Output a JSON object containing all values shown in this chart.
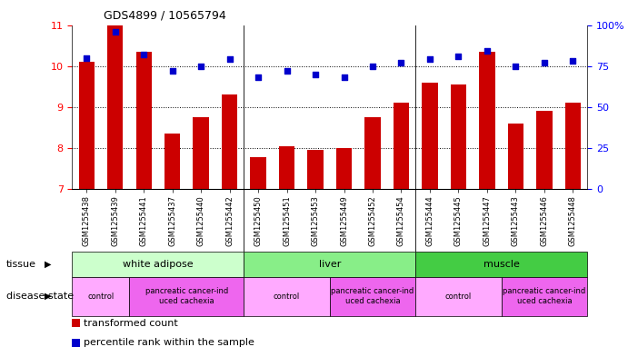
{
  "title": "GDS4899 / 10565794",
  "samples": [
    "GSM1255438",
    "GSM1255439",
    "GSM1255441",
    "GSM1255437",
    "GSM1255440",
    "GSM1255442",
    "GSM1255450",
    "GSM1255451",
    "GSM1255453",
    "GSM1255449",
    "GSM1255452",
    "GSM1255454",
    "GSM1255444",
    "GSM1255445",
    "GSM1255447",
    "GSM1255443",
    "GSM1255446",
    "GSM1255448"
  ],
  "transformed_count": [
    10.1,
    11.0,
    10.35,
    8.35,
    8.75,
    9.3,
    7.78,
    8.05,
    7.95,
    8.0,
    8.75,
    9.1,
    9.6,
    9.55,
    10.35,
    8.6,
    8.9,
    9.1
  ],
  "percentile_rank_raw": [
    80,
    96,
    82,
    72,
    75,
    79,
    68,
    72,
    70,
    68,
    75,
    77,
    79,
    81,
    84,
    75,
    77,
    78
  ],
  "ylim_left": [
    7,
    11
  ],
  "ylim_right": [
    0,
    100
  ],
  "yticks_left": [
    7,
    8,
    9,
    10,
    11
  ],
  "yticks_right": [
    0,
    25,
    50,
    75,
    100
  ],
  "ytick_labels_right": [
    "0",
    "25",
    "50",
    "75",
    "100%"
  ],
  "bar_color": "#cc0000",
  "dot_color": "#0000cc",
  "tissue_groups": [
    {
      "label": "white adipose",
      "start": 0,
      "end": 6,
      "color": "#ccffcc"
    },
    {
      "label": "liver",
      "start": 6,
      "end": 12,
      "color": "#88ee88"
    },
    {
      "label": "muscle",
      "start": 12,
      "end": 18,
      "color": "#44cc44"
    }
  ],
  "disease_groups": [
    {
      "label": "control",
      "start": 0,
      "end": 2,
      "color": "#ffaaff"
    },
    {
      "label": "pancreatic cancer-ind\nuced cachexia",
      "start": 2,
      "end": 6,
      "color": "#ee66ee"
    },
    {
      "label": "control",
      "start": 6,
      "end": 9,
      "color": "#ffaaff"
    },
    {
      "label": "pancreatic cancer-ind\nuced cachexia",
      "start": 9,
      "end": 12,
      "color": "#ee66ee"
    },
    {
      "label": "control",
      "start": 12,
      "end": 15,
      "color": "#ffaaff"
    },
    {
      "label": "pancreatic cancer-ind\nuced cachexia",
      "start": 15,
      "end": 18,
      "color": "#ee66ee"
    }
  ],
  "legend_items": [
    {
      "label": "transformed count",
      "color": "#cc0000"
    },
    {
      "label": "percentile rank within the sample",
      "color": "#0000cc"
    }
  ],
  "tissue_label": "tissue",
  "disease_label": "disease state",
  "bar_width": 0.55,
  "n_samples": 18,
  "group_boundaries": [
    6,
    12
  ]
}
